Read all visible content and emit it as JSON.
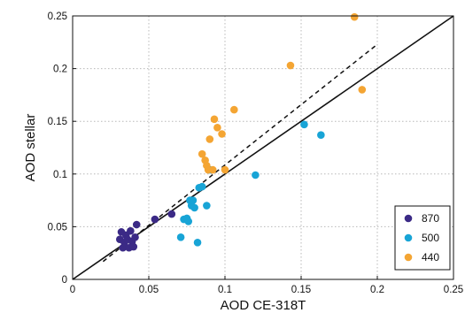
{
  "chart_data": {
    "type": "scatter",
    "xlabel": "AOD CE-318T",
    "ylabel": "AOD stellar",
    "xlim": [
      0,
      0.25
    ],
    "ylim": [
      0,
      0.25
    ],
    "x_ticks": [
      "0",
      "0.05",
      "0.1",
      "0.15",
      "0.2",
      "0.25"
    ],
    "y_ticks": [
      "0",
      "0.05",
      "0.1",
      "0.15",
      "0.2",
      "0.25"
    ],
    "grid": true,
    "grid_style": "dotted",
    "legend_position": "bottom-right",
    "reference_lines": [
      {
        "style": "solid",
        "points": [
          [
            0,
            0
          ],
          [
            0.25,
            0.25
          ]
        ]
      },
      {
        "style": "dashed",
        "points": [
          [
            0.02,
            0.017
          ],
          [
            0.2,
            0.223
          ]
        ]
      }
    ],
    "series": [
      {
        "name": "870",
        "color": "#3b2a86",
        "points": [
          [
            0.031,
            0.038
          ],
          [
            0.032,
            0.045
          ],
          [
            0.033,
            0.03
          ],
          [
            0.034,
            0.035
          ],
          [
            0.035,
            0.042
          ],
          [
            0.036,
            0.038
          ],
          [
            0.037,
            0.03
          ],
          [
            0.038,
            0.046
          ],
          [
            0.039,
            0.036
          ],
          [
            0.04,
            0.031
          ],
          [
            0.041,
            0.04
          ],
          [
            0.042,
            0.052
          ],
          [
            0.054,
            0.057
          ],
          [
            0.065,
            0.062
          ]
        ]
      },
      {
        "name": "500",
        "color": "#18a4d6",
        "points": [
          [
            0.071,
            0.04
          ],
          [
            0.073,
            0.057
          ],
          [
            0.075,
            0.058
          ],
          [
            0.076,
            0.055
          ],
          [
            0.077,
            0.075
          ],
          [
            0.078,
            0.07
          ],
          [
            0.079,
            0.075
          ],
          [
            0.08,
            0.068
          ],
          [
            0.082,
            0.035
          ],
          [
            0.083,
            0.087
          ],
          [
            0.085,
            0.088
          ],
          [
            0.088,
            0.07
          ],
          [
            0.09,
            0.104
          ],
          [
            0.12,
            0.099
          ],
          [
            0.152,
            0.147
          ],
          [
            0.163,
            0.137
          ]
        ]
      },
      {
        "name": "440",
        "color": "#f4a533",
        "points": [
          [
            0.085,
            0.119
          ],
          [
            0.087,
            0.113
          ],
          [
            0.088,
            0.108
          ],
          [
            0.089,
            0.104
          ],
          [
            0.09,
            0.133
          ],
          [
            0.092,
            0.104
          ],
          [
            0.093,
            0.152
          ],
          [
            0.095,
            0.144
          ],
          [
            0.098,
            0.138
          ],
          [
            0.1,
            0.104
          ],
          [
            0.106,
            0.161
          ],
          [
            0.143,
            0.203
          ],
          [
            0.185,
            0.249
          ],
          [
            0.19,
            0.18
          ]
        ]
      }
    ]
  }
}
